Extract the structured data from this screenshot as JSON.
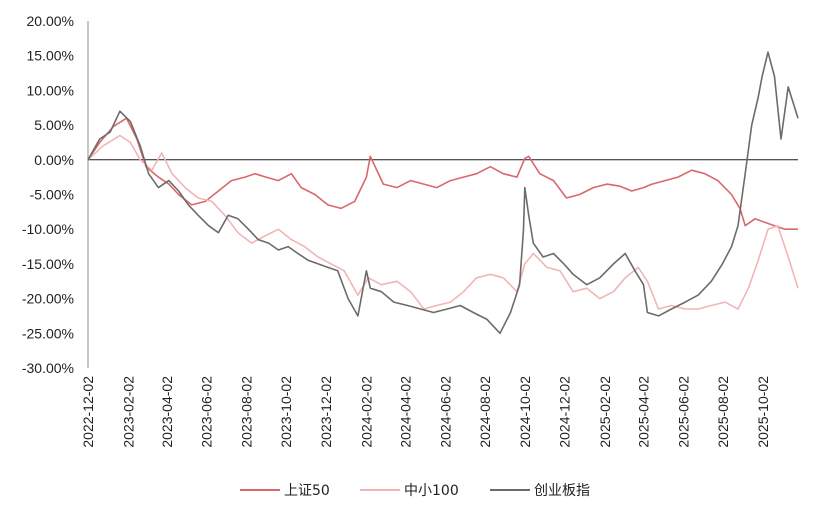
{
  "chart_data": {
    "type": "line",
    "title": "",
    "xlabel": "",
    "ylabel": "",
    "ylim": [
      -30,
      20
    ],
    "y_ticks": [
      "20.00%",
      "15.00%",
      "10.00%",
      "5.00%",
      "0.00%",
      "-5.00%",
      "-10.00%",
      "-15.00%",
      "-20.00%",
      "-25.00%",
      "-30.00%"
    ],
    "y_tick_values": [
      20,
      15,
      10,
      5,
      0,
      -5,
      -10,
      -15,
      -20,
      -25,
      -30
    ],
    "x_range": [
      "2022-12-02",
      "2025-11-25"
    ],
    "x_ticks": [
      "2022-12-02",
      "2023-02-02",
      "2023-04-02",
      "2023-06-02",
      "2023-08-02",
      "2023-10-02",
      "2023-12-02",
      "2024-02-02",
      "2024-04-02",
      "2024-06-02",
      "2024-08-02",
      "2024-10-02",
      "2024-12-02",
      "2025-02-02",
      "2025-04-02",
      "2025-06-02",
      "2025-08-02",
      "2025-10-02"
    ],
    "grid": false,
    "legend_position": "bottom",
    "series": [
      {
        "name": "上证50",
        "color": "#d9686c",
        "x": [
          "2022-12-02",
          "2022-12-20",
          "2023-01-10",
          "2023-01-30",
          "2023-02-15",
          "2023-03-01",
          "2023-03-20",
          "2023-04-05",
          "2023-04-20",
          "2023-05-10",
          "2023-05-31",
          "2023-06-20",
          "2023-07-10",
          "2023-07-31",
          "2023-08-15",
          "2023-09-01",
          "2023-09-20",
          "2023-10-10",
          "2023-10-25",
          "2023-11-15",
          "2023-12-05",
          "2023-12-25",
          "2024-01-15",
          "2024-02-02",
          "2024-02-08",
          "2024-02-28",
          "2024-03-20",
          "2024-04-10",
          "2024-04-30",
          "2024-05-20",
          "2024-06-10",
          "2024-06-30",
          "2024-07-20",
          "2024-08-10",
          "2024-08-30",
          "2024-09-20",
          "2024-10-02",
          "2024-10-08",
          "2024-10-25",
          "2024-11-15",
          "2024-12-05",
          "2024-12-25",
          "2025-01-15",
          "2025-02-05",
          "2025-02-25",
          "2025-03-15",
          "2025-04-02",
          "2025-04-15",
          "2025-05-05",
          "2025-05-25",
          "2025-06-15",
          "2025-07-05",
          "2025-07-25",
          "2025-08-15",
          "2025-08-28",
          "2025-09-05",
          "2025-09-20",
          "2025-10-05",
          "2025-10-20",
          "2025-11-05",
          "2025-11-25"
        ],
        "y": [
          0.0,
          2.5,
          4.8,
          6.0,
          3.0,
          -1.0,
          -2.5,
          -3.5,
          -5.0,
          -6.5,
          -6.0,
          -4.5,
          -3.0,
          -2.5,
          -2.0,
          -2.5,
          -3.0,
          -2.0,
          -4.0,
          -5.0,
          -6.5,
          -7.0,
          -6.0,
          -2.5,
          0.5,
          -3.5,
          -4.0,
          -3.0,
          -3.5,
          -4.0,
          -3.0,
          -2.5,
          -2.0,
          -1.0,
          -2.0,
          -2.5,
          0.2,
          0.5,
          -2.0,
          -3.0,
          -5.5,
          -5.0,
          -4.0,
          -3.5,
          -3.8,
          -4.5,
          -4.0,
          -3.5,
          -3.0,
          -2.5,
          -1.5,
          -2.0,
          -3.0,
          -5.0,
          -7.0,
          -9.5,
          -8.5,
          -9.0,
          -9.5,
          -10.0,
          -10.0
        ]
      },
      {
        "name": "中小100",
        "color": "#f2b5b5",
        "x": [
          "2022-12-02",
          "2022-12-25",
          "2023-01-20",
          "2023-02-05",
          "2023-02-20",
          "2023-03-10",
          "2023-03-25",
          "2023-04-10",
          "2023-04-30",
          "2023-05-20",
          "2023-06-10",
          "2023-06-30",
          "2023-07-20",
          "2023-08-10",
          "2023-08-30",
          "2023-09-20",
          "2023-10-10",
          "2023-10-30",
          "2023-11-20",
          "2023-12-10",
          "2023-12-30",
          "2024-01-20",
          "2024-02-05",
          "2024-02-25",
          "2024-03-20",
          "2024-04-10",
          "2024-04-30",
          "2024-05-20",
          "2024-06-10",
          "2024-06-30",
          "2024-07-20",
          "2024-08-10",
          "2024-08-30",
          "2024-09-20",
          "2024-10-02",
          "2024-10-15",
          "2024-11-05",
          "2024-11-25",
          "2024-12-15",
          "2025-01-05",
          "2025-01-25",
          "2025-02-15",
          "2025-03-05",
          "2025-03-25",
          "2025-04-08",
          "2025-04-25",
          "2025-05-15",
          "2025-06-05",
          "2025-06-25",
          "2025-07-15",
          "2025-08-05",
          "2025-08-25",
          "2025-09-10",
          "2025-09-25",
          "2025-10-10",
          "2025-10-25",
          "2025-11-10",
          "2025-11-25"
        ],
        "y": [
          0.0,
          2.0,
          3.5,
          2.5,
          0.0,
          -1.5,
          1.0,
          -2.0,
          -4.0,
          -5.5,
          -6.0,
          -8.0,
          -10.5,
          -12.0,
          -11.0,
          -10.0,
          -11.5,
          -12.5,
          -14.0,
          -15.0,
          -16.0,
          -19.5,
          -17.0,
          -18.0,
          -17.5,
          -19.0,
          -21.5,
          -21.0,
          -20.5,
          -19.0,
          -17.0,
          -16.5,
          -17.0,
          -19.0,
          -15.0,
          -13.5,
          -15.5,
          -16.0,
          -19.0,
          -18.5,
          -20.0,
          -19.0,
          -17.0,
          -15.5,
          -17.5,
          -21.5,
          -21.0,
          -21.5,
          -21.5,
          -21.0,
          -20.5,
          -21.5,
          -18.5,
          -14.5,
          -10.0,
          -9.5,
          -14.0,
          -18.5
        ]
      },
      {
        "name": "创业板指",
        "color": "#6e6a6a",
        "x": [
          "2022-12-02",
          "2022-12-20",
          "2023-01-05",
          "2023-01-20",
          "2023-02-05",
          "2023-02-20",
          "2023-03-05",
          "2023-03-20",
          "2023-04-05",
          "2023-04-20",
          "2023-05-05",
          "2023-05-20",
          "2023-06-05",
          "2023-06-20",
          "2023-07-05",
          "2023-07-20",
          "2023-08-05",
          "2023-08-20",
          "2023-09-05",
          "2023-09-20",
          "2023-10-05",
          "2023-10-20",
          "2023-11-05",
          "2023-11-20",
          "2023-12-05",
          "2023-12-20",
          "2024-01-05",
          "2024-01-20",
          "2024-02-02",
          "2024-02-08",
          "2024-02-25",
          "2024-03-15",
          "2024-04-05",
          "2024-04-25",
          "2024-05-15",
          "2024-06-05",
          "2024-06-25",
          "2024-07-15",
          "2024-08-05",
          "2024-08-25",
          "2024-09-10",
          "2024-09-24",
          "2024-09-30",
          "2024-10-02",
          "2024-10-08",
          "2024-10-15",
          "2024-10-30",
          "2024-11-15",
          "2024-12-01",
          "2024-12-15",
          "2025-01-05",
          "2025-01-25",
          "2025-02-15",
          "2025-03-05",
          "2025-03-20",
          "2025-04-02",
          "2025-04-08",
          "2025-04-25",
          "2025-05-15",
          "2025-06-05",
          "2025-06-25",
          "2025-07-15",
          "2025-08-01",
          "2025-08-15",
          "2025-08-25",
          "2025-09-05",
          "2025-09-15",
          "2025-09-25",
          "2025-10-01",
          "2025-10-10",
          "2025-10-20",
          "2025-10-30",
          "2025-11-10",
          "2025-11-25"
        ],
        "y": [
          0.0,
          3.0,
          4.0,
          7.0,
          5.5,
          2.0,
          -2.0,
          -4.0,
          -3.0,
          -4.5,
          -6.5,
          -8.0,
          -9.5,
          -10.5,
          -8.0,
          -8.5,
          -10.0,
          -11.5,
          -12.0,
          -13.0,
          -12.5,
          -13.5,
          -14.5,
          -15.0,
          -15.5,
          -16.0,
          -20.0,
          -22.5,
          -16.0,
          -18.5,
          -19.0,
          -20.5,
          -21.0,
          -21.5,
          -22.0,
          -21.5,
          -21.0,
          -22.0,
          -23.0,
          -25.0,
          -22.0,
          -18.0,
          -10.0,
          -4.0,
          -8.0,
          -12.0,
          -14.0,
          -13.5,
          -15.0,
          -16.5,
          -18.0,
          -17.0,
          -15.0,
          -13.5,
          -16.0,
          -18.0,
          -22.0,
          -22.5,
          -21.5,
          -20.5,
          -19.5,
          -17.5,
          -15.0,
          -12.5,
          -9.5,
          -2.0,
          5.0,
          9.0,
          12.0,
          15.5,
          12.0,
          3.0,
          10.5,
          6.0
        ]
      }
    ]
  }
}
